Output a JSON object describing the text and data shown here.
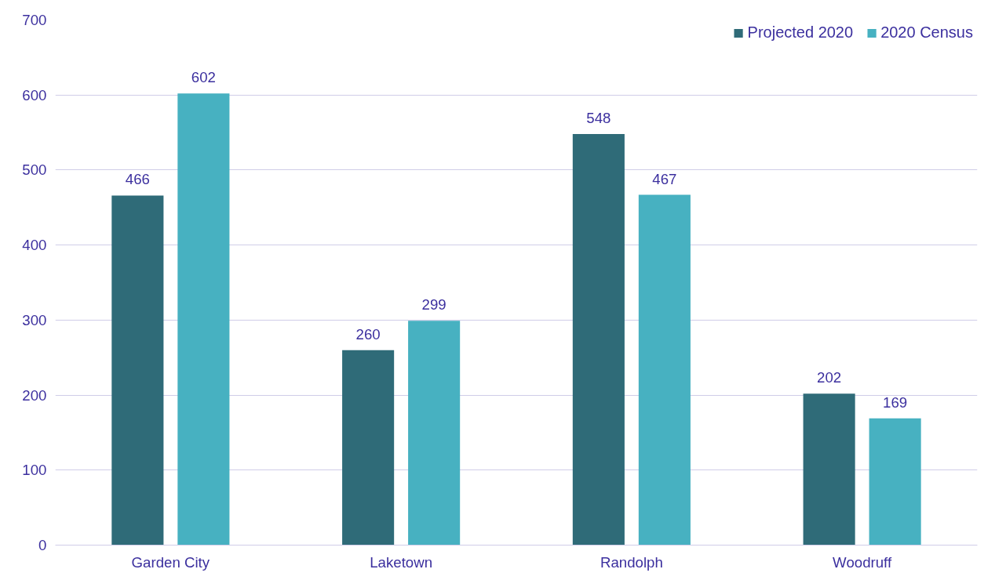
{
  "chart_data": {
    "type": "bar",
    "categories": [
      "Garden City",
      "Laketown",
      "Randolph",
      "Woodruff"
    ],
    "series": [
      {
        "name": "Projected 2020",
        "color": "#2f6b78",
        "values": [
          466,
          260,
          548,
          202
        ]
      },
      {
        "name": "2020 Census",
        "color": "#47b1c1",
        "values": [
          602,
          299,
          467,
          169
        ]
      }
    ],
    "ylim": [
      0,
      700
    ],
    "yticks": [
      0,
      100,
      200,
      300,
      400,
      500,
      600,
      700
    ],
    "grid": "y",
    "legend": "top right",
    "data_labels": true
  }
}
